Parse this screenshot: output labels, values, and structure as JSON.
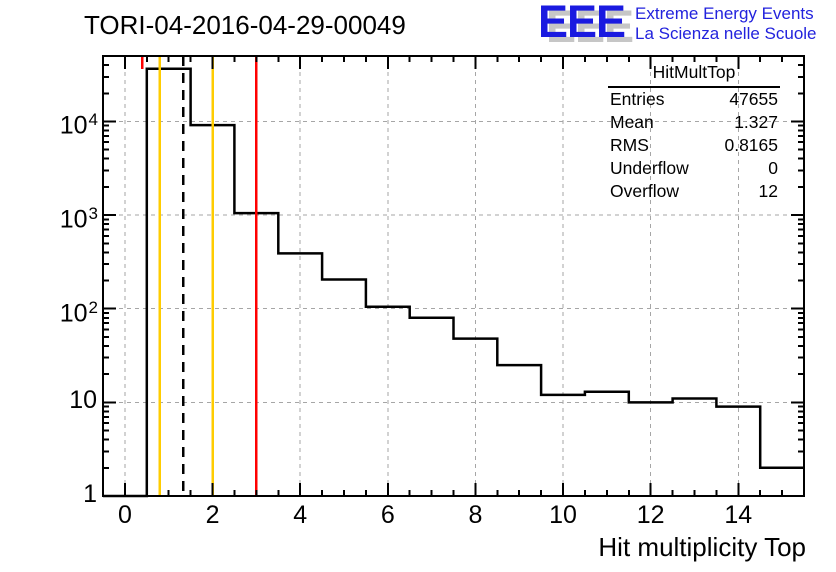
{
  "header": {
    "title": "TORI-04-2016-04-29-00049"
  },
  "logo": {
    "wordmark": "EEE",
    "line1": "Extreme Energy Events",
    "line2": "La Scienza nelle Scuole",
    "wordmark_color": "#1a1ae0",
    "shadow_color": "#c6c6c6",
    "text_color": "#2222dd"
  },
  "chart_data": {
    "type": "bar",
    "subtype": "step-histogram",
    "title": "TORI-04-2016-04-29-00049",
    "xlabel": "Hit multiplicity Top",
    "ylabel": "",
    "yscale": "log",
    "xlim": [
      -0.5,
      15.5
    ],
    "ylim": [
      1,
      50000
    ],
    "grid": true,
    "legend": "none",
    "line_color": "#000000",
    "grid_color": "#a6a6a6",
    "frame_color": "#000000",
    "bin_width": 1,
    "bin_centers": [
      0,
      1,
      2,
      3,
      4,
      5,
      6,
      7,
      8,
      9,
      10,
      11,
      12,
      13,
      14,
      15
    ],
    "counts": [
      0,
      36533,
      9150,
      1050,
      390,
      205,
      105,
      80,
      48,
      25,
      12,
      13,
      10,
      11,
      9,
      2
    ],
    "x_major_ticks": [
      0,
      2,
      4,
      6,
      8,
      10,
      12,
      14
    ],
    "x_minor_step": 0.5,
    "y_tick_labels": [
      {
        "v": 1,
        "base": "1",
        "exp": ""
      },
      {
        "v": 10,
        "base": "10",
        "exp": ""
      },
      {
        "v": 100,
        "base": "10",
        "exp": "2"
      },
      {
        "v": 1000,
        "base": "10",
        "exp": "3"
      },
      {
        "v": 10000,
        "base": "10",
        "exp": "4"
      }
    ],
    "marker_lines": [
      {
        "x": 0.4,
        "color": "#ff0000",
        "style": "solid",
        "span": "top-to-hist-max"
      },
      {
        "x": 0.8,
        "color": "#ffcc00",
        "style": "solid",
        "span": "full"
      },
      {
        "x": 1.327,
        "color": "#000000",
        "style": "dashed",
        "span": "full",
        "note": "mean"
      },
      {
        "x": 2,
        "color": "#ffcc00",
        "style": "solid",
        "span": "full"
      },
      {
        "x": 3,
        "color": "#ff0000",
        "style": "solid",
        "span": "full"
      }
    ],
    "stats": {
      "title": "HitMultTop",
      "rows": [
        {
          "label": "Entries",
          "value": "47655"
        },
        {
          "label": "Mean",
          "value": "1.327"
        },
        {
          "label": "RMS",
          "value": "0.8165"
        },
        {
          "label": "Underflow",
          "value": "0"
        },
        {
          "label": "Overflow",
          "value": "12"
        }
      ]
    }
  }
}
